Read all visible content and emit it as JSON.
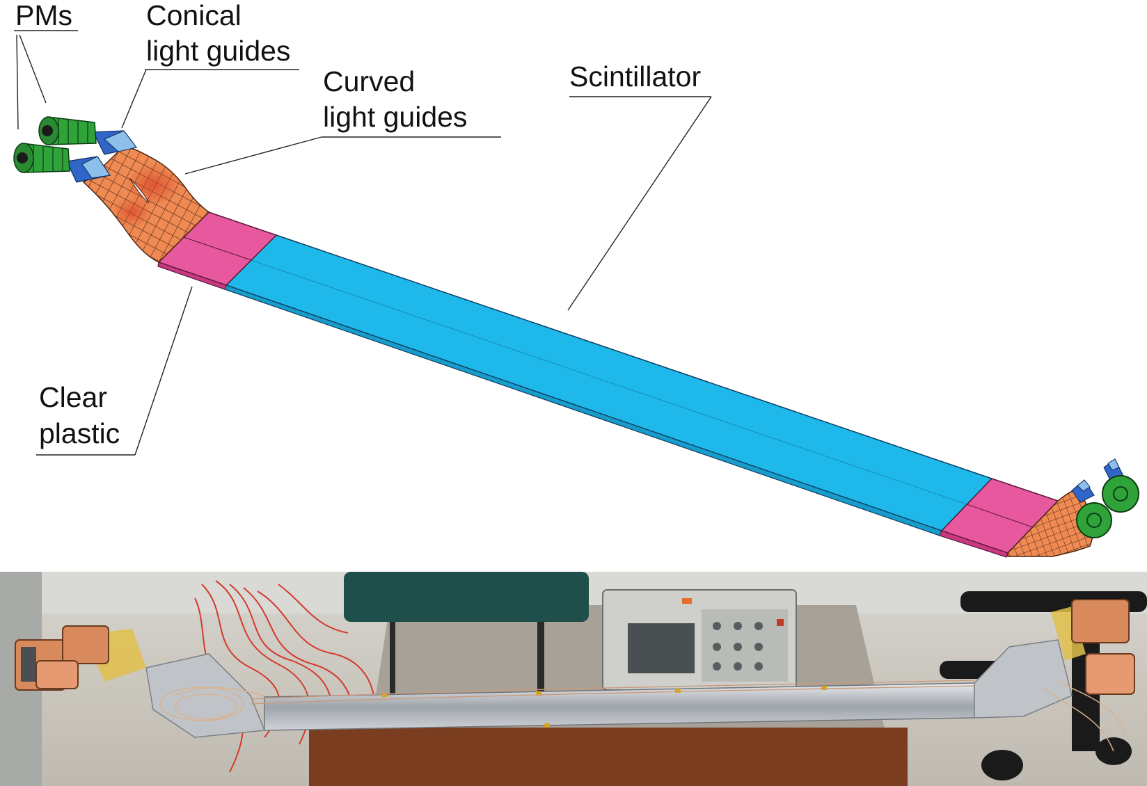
{
  "labels": {
    "pms": "PMs",
    "conical_line1": "Conical",
    "conical_line2": "light guides",
    "curved_line1": "Curved",
    "curved_line2": "light guides",
    "scintillator": "Scintillator",
    "clear_line1": "Clear",
    "clear_line2": "plastic"
  },
  "colors": {
    "scintillator": "#1fb8ea",
    "clear_plastic": "#e7589f",
    "curved_light_guide": "#ef8a52",
    "conical_light_guide": "#2f66c8",
    "pm": "#2fa23a",
    "photo_floor": "#c9c5bb",
    "photo_wall": "#d9d9d6",
    "photo_cable": "#d43a2c",
    "photo_bar": "#b7bcc2",
    "photo_copper": "#d88a5c",
    "photo_stand": "#7a3d20"
  }
}
